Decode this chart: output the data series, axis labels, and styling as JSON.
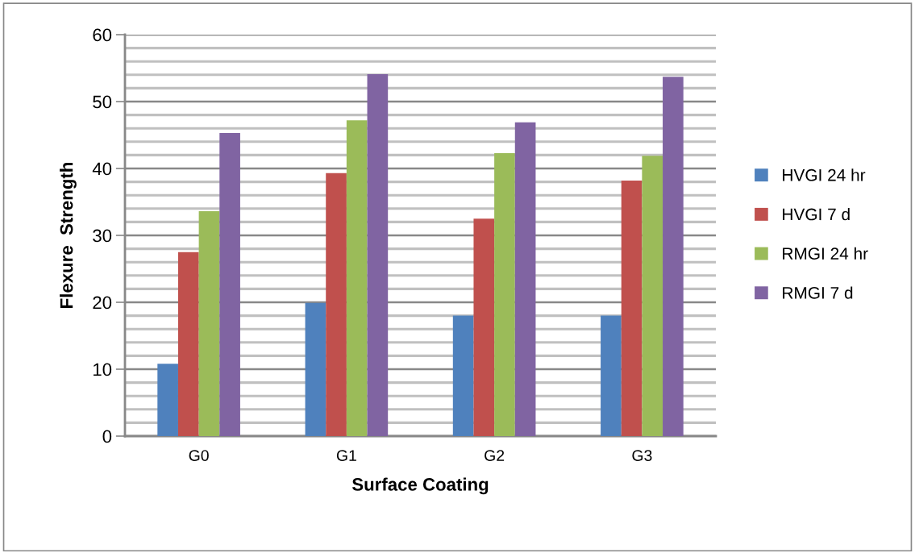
{
  "chart_data": {
    "type": "bar",
    "xlabel": "Surface Coating",
    "ylabel": "Flexure  Strength",
    "categories": [
      "G0",
      "G1",
      "G2",
      "G3"
    ],
    "series": [
      {
        "name": "HVGI 24 hr",
        "color": "#4f81bd",
        "values": [
          10.8,
          19.9,
          18.0,
          18.0
        ]
      },
      {
        "name": "HVGI 7 d",
        "color": "#c0504d",
        "values": [
          27.5,
          39.3,
          32.5,
          38.2
        ]
      },
      {
        "name": "RMGI 24 hr",
        "color": "#9bbb59",
        "values": [
          33.6,
          47.2,
          42.3,
          41.9
        ]
      },
      {
        "name": "RMGI 7 d",
        "color": "#8064a2",
        "values": [
          45.3,
          54.1,
          46.9,
          53.7
        ]
      }
    ],
    "ylim": [
      0,
      60
    ],
    "yticks": [
      0,
      {
        "value": 2,
        "label": null
      },
      {
        "value": 4,
        "label": null
      },
      {
        "value": 6,
        "label": null
      },
      {
        "value": 8,
        "label": null
      },
      10,
      {
        "value": 12,
        "label": null
      },
      {
        "value": 14,
        "label": null
      },
      {
        "value": 16,
        "label": null
      },
      {
        "value": 18,
        "label": null
      },
      20,
      {
        "value": 22,
        "label": null
      },
      {
        "value": 24,
        "label": null
      },
      {
        "value": 26,
        "label": null
      },
      {
        "value": 28,
        "label": null
      },
      30,
      {
        "value": 32,
        "label": null
      },
      {
        "value": 34,
        "label": null
      },
      {
        "value": 36,
        "label": null
      },
      {
        "value": 38,
        "label": null
      },
      40,
      {
        "value": 42,
        "label": null
      },
      {
        "value": 44,
        "label": null
      },
      {
        "value": 46,
        "label": null
      },
      {
        "value": 48,
        "label": null
      },
      50,
      {
        "value": 52,
        "label": null
      },
      {
        "value": 54,
        "label": null
      },
      {
        "value": 56,
        "label": null
      },
      {
        "value": 58,
        "label": null
      },
      60
    ],
    "grid": "y",
    "legend": "right"
  }
}
